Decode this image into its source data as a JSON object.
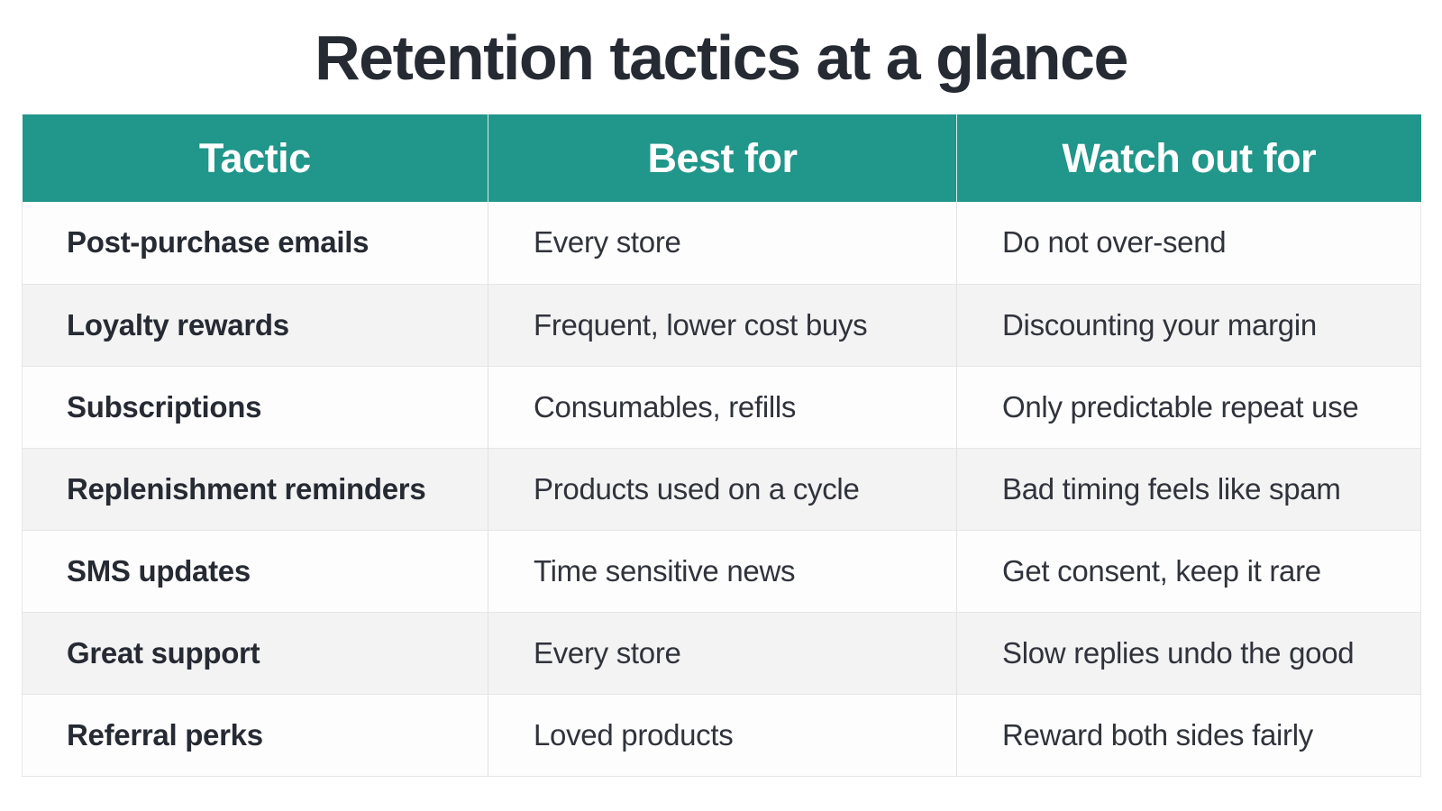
{
  "title": "Retention tactics at a glance",
  "table": {
    "headers": [
      "Tactic",
      "Best for",
      "Watch out for"
    ],
    "rows": [
      [
        "Post-purchase emails",
        "Every store",
        "Do not over-send"
      ],
      [
        "Loyalty rewards",
        "Frequent, lower cost buys",
        "Discounting your margin"
      ],
      [
        "Subscriptions",
        "Consumables, refills",
        "Only predictable repeat use"
      ],
      [
        "Replenishment reminders",
        "Products used on a cycle",
        "Bad timing feels like spam"
      ],
      [
        "SMS updates",
        "Time sensitive news",
        "Get consent, keep it rare"
      ],
      [
        "Great support",
        "Every store",
        "Slow replies undo the good"
      ],
      [
        "Referral perks",
        "Loved products",
        "Reward both sides fairly"
      ]
    ]
  },
  "colors": {
    "header_bg": "#21968a",
    "header_text": "#ffffff",
    "title_text": "#262a33"
  }
}
